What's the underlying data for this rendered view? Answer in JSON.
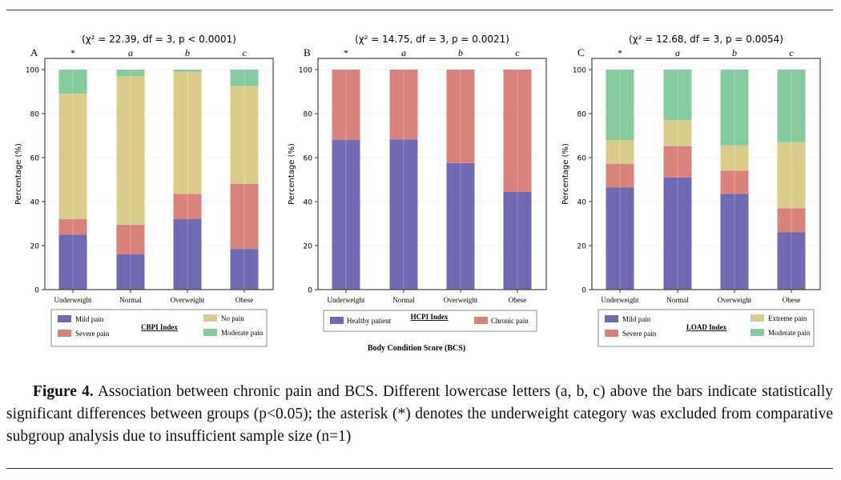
{
  "colors": {
    "mild": "#6f6ab1",
    "severe": "#d9827b",
    "nopain": "#d8cc8a",
    "moderate": "#86cba0"
  },
  "x_axis_title": "Body Condition Score (BCS)",
  "caption": {
    "label": "Figure 4.",
    "text": " Association between chronic pain and BCS. Different lowercase letters (a, b, c) above the bars indicate statistically significant differences between groups (p<0.05); the asterisk (*) denotes the underweight category was excluded from comparative subgroup analysis due to insufficient sample size (n=1)"
  },
  "chart_data": [
    {
      "type": "bar",
      "stacked": true,
      "panel": "A",
      "title": "(χ² = 22.39, df = 3, p < 0.0001)",
      "ylabel": "Percentage (%)",
      "ylim": [
        0,
        100
      ],
      "yticks": [
        "0",
        "20",
        "40",
        "60",
        "80",
        "100"
      ],
      "categories": [
        "Underweight",
        "Normal",
        "Overweight",
        "Obese"
      ],
      "group_letters": [
        "*",
        "a",
        "b",
        "c"
      ],
      "legend_title": "CBPI Index",
      "series": [
        {
          "name": "Mild pain",
          "color": "mild",
          "values": [
            25,
            16,
            32,
            18.5
          ]
        },
        {
          "name": "Severe pain",
          "color": "severe",
          "values": [
            7,
            13.5,
            11.5,
            29.5
          ]
        },
        {
          "name": "No pain",
          "color": "nopain",
          "values": [
            57,
            67.5,
            55.5,
            44.5
          ]
        },
        {
          "name": "Moderate pain",
          "color": "moderate",
          "values": [
            11,
            3,
            1,
            7.5
          ]
        }
      ]
    },
    {
      "type": "bar",
      "stacked": true,
      "panel": "B",
      "title": "(χ² = 14.75, df = 3, p = 0.0021)",
      "ylabel": "Percentage (%)",
      "ylim": [
        0,
        100
      ],
      "yticks": [
        "0",
        "20",
        "40",
        "60",
        "80",
        "100"
      ],
      "categories": [
        "Underweight",
        "Normal",
        "Overweight",
        "Obese"
      ],
      "group_letters": [
        "*",
        "a",
        "b",
        "c"
      ],
      "legend_title": "HCPI Index",
      "series": [
        {
          "name": "Healthy patient",
          "color": "mild",
          "values": [
            68,
            68.3,
            57.5,
            44.5
          ]
        },
        {
          "name": "Chronic pain",
          "color": "severe",
          "values": [
            32,
            31.7,
            42.5,
            55.5
          ]
        }
      ]
    },
    {
      "type": "bar",
      "stacked": true,
      "panel": "C",
      "title": "(χ² = 12.68, df = 3, p = 0.0054)",
      "ylabel": "Percentage (%)",
      "ylim": [
        0,
        100
      ],
      "yticks": [
        "0",
        "20",
        "40",
        "60",
        "80",
        "100"
      ],
      "categories": [
        "Underweight",
        "Normal",
        "Overweight",
        "Obese"
      ],
      "group_letters": [
        "*",
        "a",
        "b",
        "c"
      ],
      "legend_title": "LOAD Index",
      "series": [
        {
          "name": "Mild pain",
          "color": "mild",
          "values": [
            46.5,
            51,
            43.5,
            26
          ]
        },
        {
          "name": "Severe pain",
          "color": "severe",
          "values": [
            10.7,
            14.2,
            10.5,
            11
          ]
        },
        {
          "name": "Extreme pain",
          "color": "nopain",
          "values": [
            10.8,
            11.8,
            11.5,
            30
          ]
        },
        {
          "name": "Moderate pain",
          "color": "moderate",
          "values": [
            32,
            23,
            34.5,
            33
          ]
        }
      ]
    }
  ]
}
